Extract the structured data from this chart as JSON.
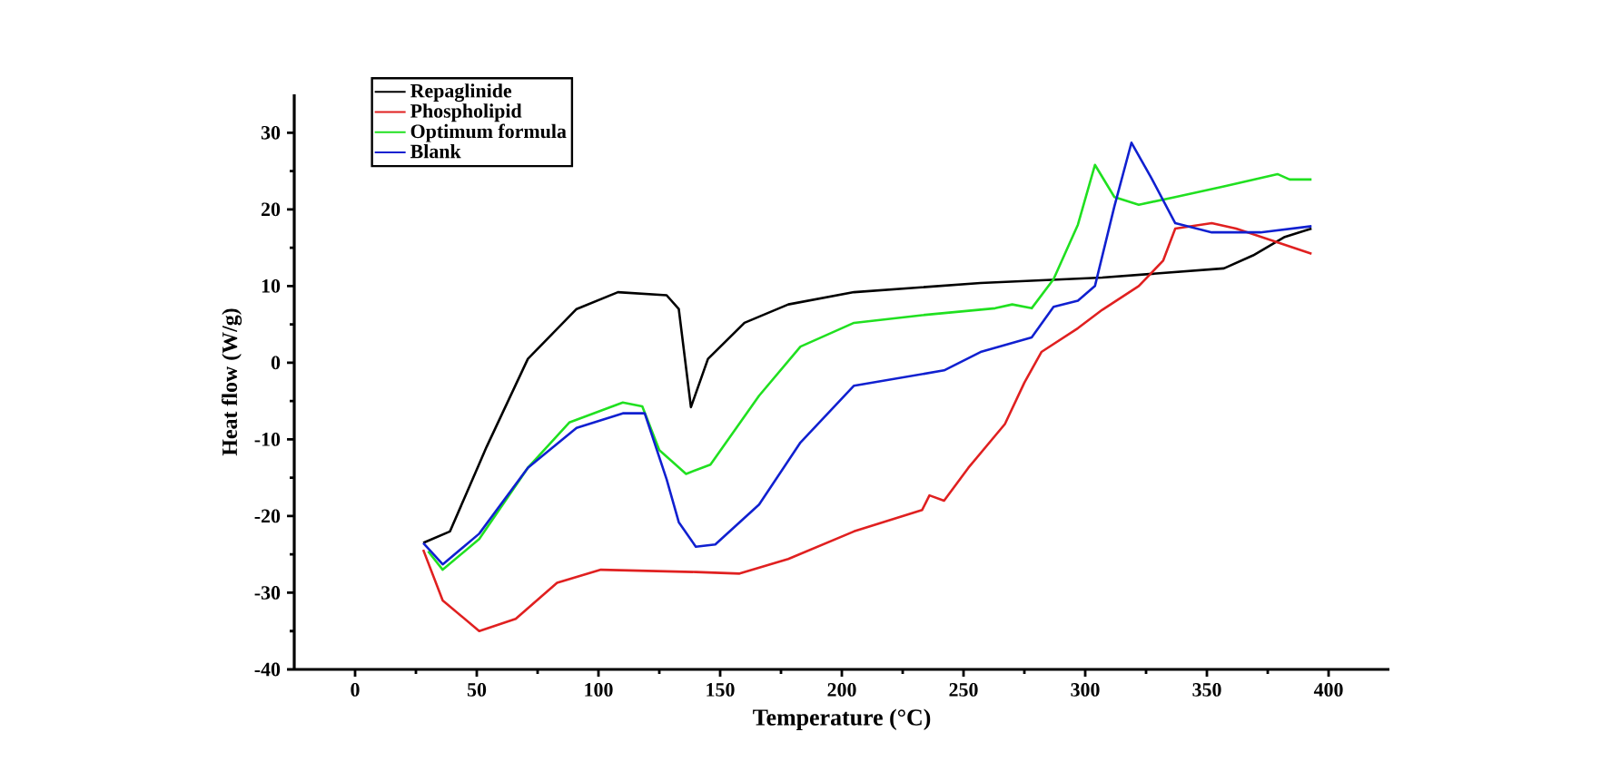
{
  "chart_data": {
    "type": "line",
    "xlabel": "Temperature (°C)",
    "ylabel": "Heat flow (W/g)",
    "xlim": [
      -25,
      425
    ],
    "ylim": [
      -40,
      35
    ],
    "xticks": [
      0,
      50,
      100,
      150,
      200,
      250,
      300,
      350,
      400
    ],
    "yticks": [
      -40,
      -30,
      -20,
      -10,
      0,
      10,
      20,
      30
    ],
    "grid": false,
    "legend": "top left",
    "marker": "none",
    "line_style": "solid",
    "series": [
      {
        "name": "Repaglinide",
        "color": "#000000",
        "x": [
          28,
          39,
          54,
          71,
          91,
          108,
          128,
          133,
          138,
          145,
          160,
          178,
          205,
          257,
          307,
          357,
          369,
          382,
          393
        ],
        "values": [
          -23.5,
          -22,
          -11,
          0.5,
          7,
          9.2,
          8.8,
          7,
          -5.8,
          0.5,
          5.2,
          7.6,
          9.2,
          10.4,
          11.1,
          12.3,
          14,
          16.4,
          17.5
        ]
      },
      {
        "name": "Phospholipid",
        "color": "#e02020",
        "x": [
          28,
          36,
          51,
          66,
          83,
          101,
          140,
          158,
          178,
          205,
          233,
          236,
          242,
          252,
          267,
          275,
          282,
          297,
          307,
          322,
          332,
          337,
          352,
          362,
          393
        ],
        "values": [
          -24.4,
          -31,
          -35,
          -33.4,
          -28.7,
          -27,
          -27.3,
          -27.5,
          -25.6,
          -22,
          -19.2,
          -17.3,
          -18,
          -13.7,
          -8,
          -2.6,
          1.4,
          4.5,
          6.9,
          10,
          13.3,
          17.5,
          18.2,
          17.5,
          14.2
        ]
      },
      {
        "name": "Optimum formula",
        "color": "#20e020",
        "x": [
          30,
          36,
          51,
          71,
          88,
          110,
          118,
          125,
          136,
          146,
          166,
          183,
          205,
          233,
          263,
          270,
          278,
          287,
          297,
          304,
          312,
          322,
          337,
          357,
          379,
          384,
          393
        ],
        "values": [
          -24.6,
          -27,
          -23,
          -13.7,
          -7.8,
          -5.2,
          -5.7,
          -11.4,
          -14.5,
          -13.3,
          -4.3,
          2.1,
          5.2,
          6.2,
          7.1,
          7.6,
          7.1,
          10.9,
          18,
          25.8,
          21.6,
          20.6,
          21.6,
          23,
          24.6,
          23.9,
          23.9
        ]
      },
      {
        "name": "Blank",
        "color": "#1020d0",
        "x": [
          28,
          36,
          51,
          71,
          91,
          110,
          119,
          128,
          133,
          140,
          148,
          166,
          183,
          205,
          242,
          257,
          278,
          287,
          297,
          304,
          312,
          319,
          327,
          337,
          352,
          372,
          393
        ],
        "values": [
          -23.5,
          -26.3,
          -22.3,
          -13.7,
          -8.5,
          -6.6,
          -6.6,
          -15.2,
          -20.8,
          -24,
          -23.7,
          -18.5,
          -10.4,
          -3,
          -1,
          1.4,
          3.3,
          7.3,
          8.1,
          10,
          20.4,
          28.7,
          24.2,
          18.2,
          17,
          17,
          17.8
        ]
      }
    ]
  }
}
